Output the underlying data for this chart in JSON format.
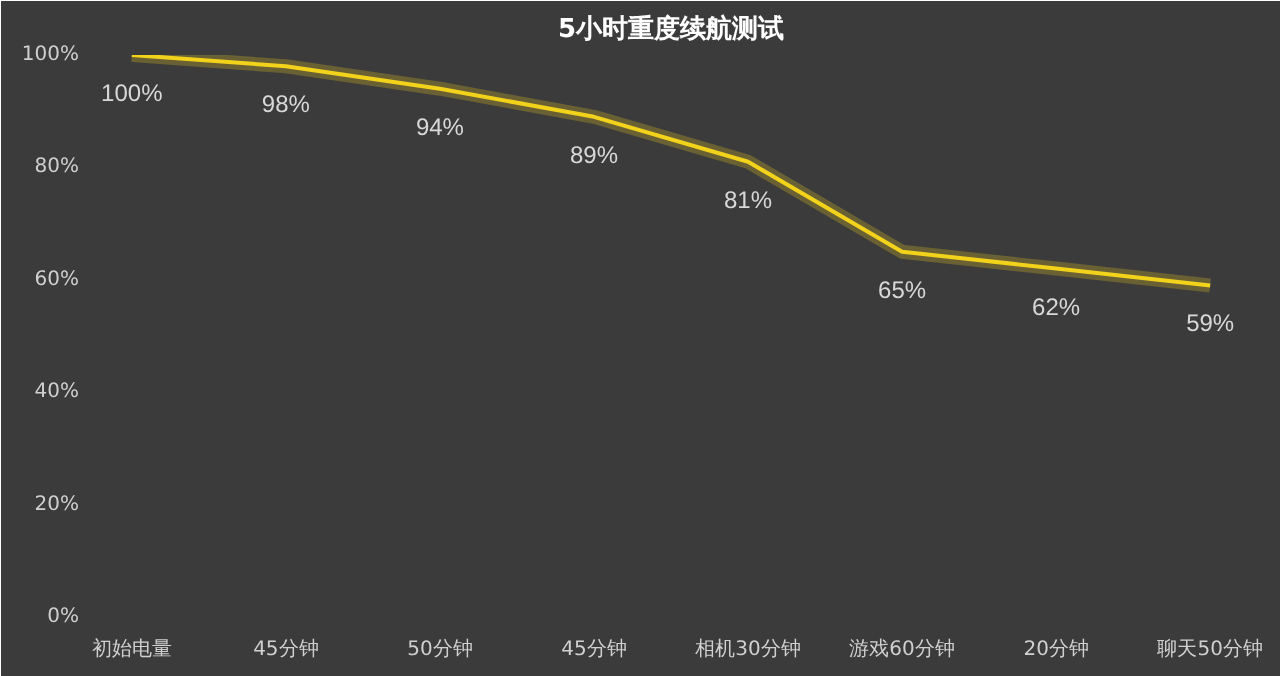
{
  "chart_data": {
    "type": "line",
    "title": "5小时重度续航测试",
    "categories": [
      "初始电量",
      "45分钟",
      "50分钟",
      "45分钟",
      "相机30分钟",
      "游戏60分钟",
      "20分钟",
      "聊天50分钟"
    ],
    "series": [
      {
        "color": "#f2d21b",
        "values": [
          100,
          98,
          94,
          89,
          81,
          65,
          62,
          59
        ]
      }
    ],
    "ylim": [
      0,
      100
    ],
    "yticks": [
      {
        "value": 0,
        "label": "0%"
      },
      {
        "value": 20,
        "label": "20%"
      },
      {
        "value": 40,
        "label": "40%"
      },
      {
        "value": 60,
        "label": "60%"
      },
      {
        "value": 80,
        "label": "80%"
      },
      {
        "value": 100,
        "label": "100%"
      }
    ],
    "value_labels": [
      "100%",
      "98%",
      "94%",
      "89%",
      "81%",
      "65%",
      "62%",
      "59%"
    ],
    "grid": false,
    "marker": "none",
    "line_style": "solid"
  }
}
